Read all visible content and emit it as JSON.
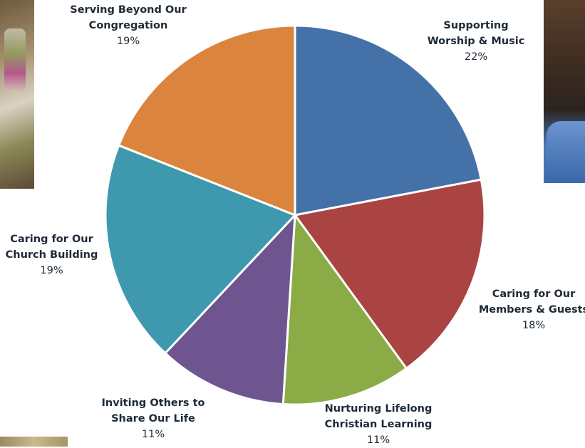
{
  "chart_data": {
    "type": "pie",
    "title": "",
    "slices": [
      {
        "label_lines": [
          "Supporting",
          "Worship & Music"
        ],
        "value": 22,
        "pct_label": "22%",
        "color": "#4472a8"
      },
      {
        "label_lines": [
          "Caring for Our",
          "Members & Guests"
        ],
        "value": 18,
        "pct_label": "18%",
        "color": "#a94442"
      },
      {
        "label_lines": [
          "Nurturing Lifelong",
          "Christian Learning"
        ],
        "value": 11,
        "pct_label": "11%",
        "color": "#8aab45"
      },
      {
        "label_lines": [
          "Inviting Others to",
          "Share Our Life"
        ],
        "value": 11,
        "pct_label": "11%",
        "color": "#6f5590"
      },
      {
        "label_lines": [
          "Caring for Our",
          "Church Building"
        ],
        "value": 19,
        "pct_label": "19%",
        "color": "#3e99ae"
      },
      {
        "label_lines": [
          "Serving Beyond Our",
          "Congregation"
        ],
        "value": 19,
        "pct_label": "19%",
        "color": "#db843d"
      }
    ]
  }
}
